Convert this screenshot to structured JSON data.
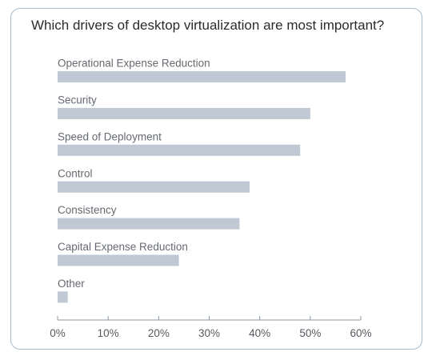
{
  "chart_data": {
    "type": "bar",
    "orientation": "horizontal",
    "title": "Which drivers of desktop virtualization are most important?",
    "categories": [
      "Operational Expense Reduction",
      "Security",
      "Speed of Deployment",
      "Control",
      "Consistency",
      "Capital Expense Reduction",
      "Other"
    ],
    "values": [
      57,
      50,
      48,
      38,
      36,
      24,
      2
    ],
    "xlim": [
      0,
      60
    ],
    "x_ticks": [
      0,
      10,
      20,
      30,
      40,
      50,
      60
    ],
    "tick_labels": [
      "0%",
      "10%",
      "20%",
      "30%",
      "40%",
      "50%",
      "60%"
    ],
    "grid": false,
    "legend": "none",
    "bar_color": "#bfc8d3",
    "border_color": "#a8bccd"
  }
}
